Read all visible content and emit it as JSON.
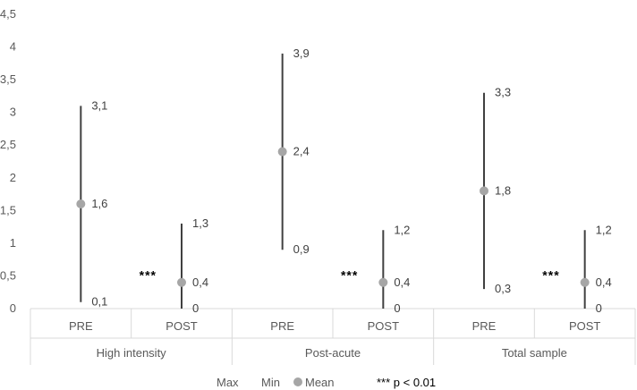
{
  "chart_data": {
    "type": "high-low-mean",
    "ylim": [
      0,
      4.5
    ],
    "y_ticks": [
      "0",
      "0,5",
      "1",
      "1,5",
      "2",
      "2,5",
      "3",
      "3,5",
      "4",
      "4,5"
    ],
    "y_tick_values": [
      0,
      0.5,
      1,
      1.5,
      2,
      2.5,
      3,
      3.5,
      4,
      4.5
    ],
    "groups": [
      {
        "name": "High intensity",
        "items": [
          {
            "label": "PRE",
            "max": 3.1,
            "min": 0.1,
            "mean": 1.6,
            "max_text": "3,1",
            "min_text": "0,1",
            "mean_text": "1,6",
            "sig": ""
          },
          {
            "label": "POST",
            "max": 1.3,
            "min": 0,
            "mean": 0.4,
            "max_text": "1,3",
            "min_text": "0",
            "mean_text": "0,4",
            "sig": "***"
          }
        ]
      },
      {
        "name": "Post-acute",
        "items": [
          {
            "label": "PRE",
            "max": 3.9,
            "min": 0.9,
            "mean": 2.4,
            "max_text": "3,9",
            "min_text": "0,9",
            "mean_text": "2,4",
            "sig": ""
          },
          {
            "label": "POST",
            "max": 1.2,
            "min": 0,
            "mean": 0.4,
            "max_text": "1,2",
            "min_text": "0",
            "mean_text": "0,4",
            "sig": "***"
          }
        ]
      },
      {
        "name": "Total sample",
        "items": [
          {
            "label": "PRE",
            "max": 3.3,
            "min": 0.3,
            "mean": 1.8,
            "max_text": "3,3",
            "min_text": "0,3",
            "mean_text": "1,8",
            "sig": ""
          },
          {
            "label": "POST",
            "max": 1.2,
            "min": 0,
            "mean": 0.4,
            "max_text": "1,2",
            "min_text": "0",
            "mean_text": "0,4",
            "sig": "***"
          }
        ]
      }
    ],
    "legend": {
      "max_label": "Max",
      "min_label": "Min",
      "mean_label": "Mean",
      "note": "*** p < 0.01"
    },
    "colors": {
      "range_line": "#404040",
      "mean_marker": "#a6a6a6",
      "axis": "#d9d9d9"
    }
  }
}
